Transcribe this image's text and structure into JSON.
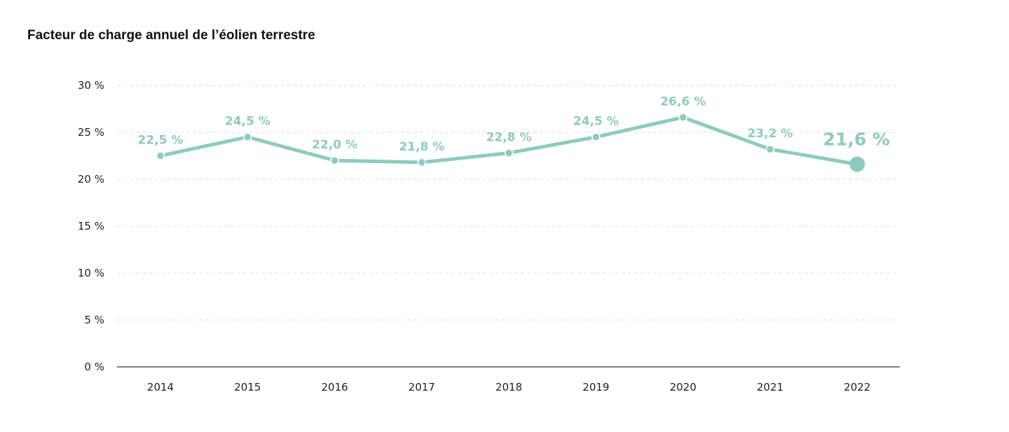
{
  "chart_data": {
    "type": "line",
    "title": "Facteur de charge annuel de l’éolien terrestre",
    "xlabel": "",
    "ylabel": "",
    "categories": [
      "2014",
      "2015",
      "2016",
      "2017",
      "2018",
      "2019",
      "2020",
      "2021",
      "2022"
    ],
    "values": [
      22.5,
      24.5,
      22.0,
      21.8,
      22.8,
      24.5,
      26.6,
      23.2,
      21.6
    ],
    "data_labels": [
      "22,5 %",
      "24,5 %",
      "22,0 %",
      "21,8 %",
      "22,8 %",
      "24,5 %",
      "26,6 %",
      "23,2 %",
      "21,6 %"
    ],
    "ylim": [
      0,
      30
    ],
    "y_ticks": [
      0,
      5,
      10,
      15,
      20,
      25,
      30
    ],
    "y_tick_labels": [
      "0 %",
      "5 %",
      "10 %",
      "15 %",
      "20 %",
      "25 %",
      "30 %"
    ],
    "grid": true,
    "legend": "none",
    "highlight_last_point": true,
    "colors": {
      "line": "#8ecbbd",
      "grid": "#dddddd",
      "axis": "#333333",
      "text": "#222222",
      "title": "#111111"
    }
  }
}
